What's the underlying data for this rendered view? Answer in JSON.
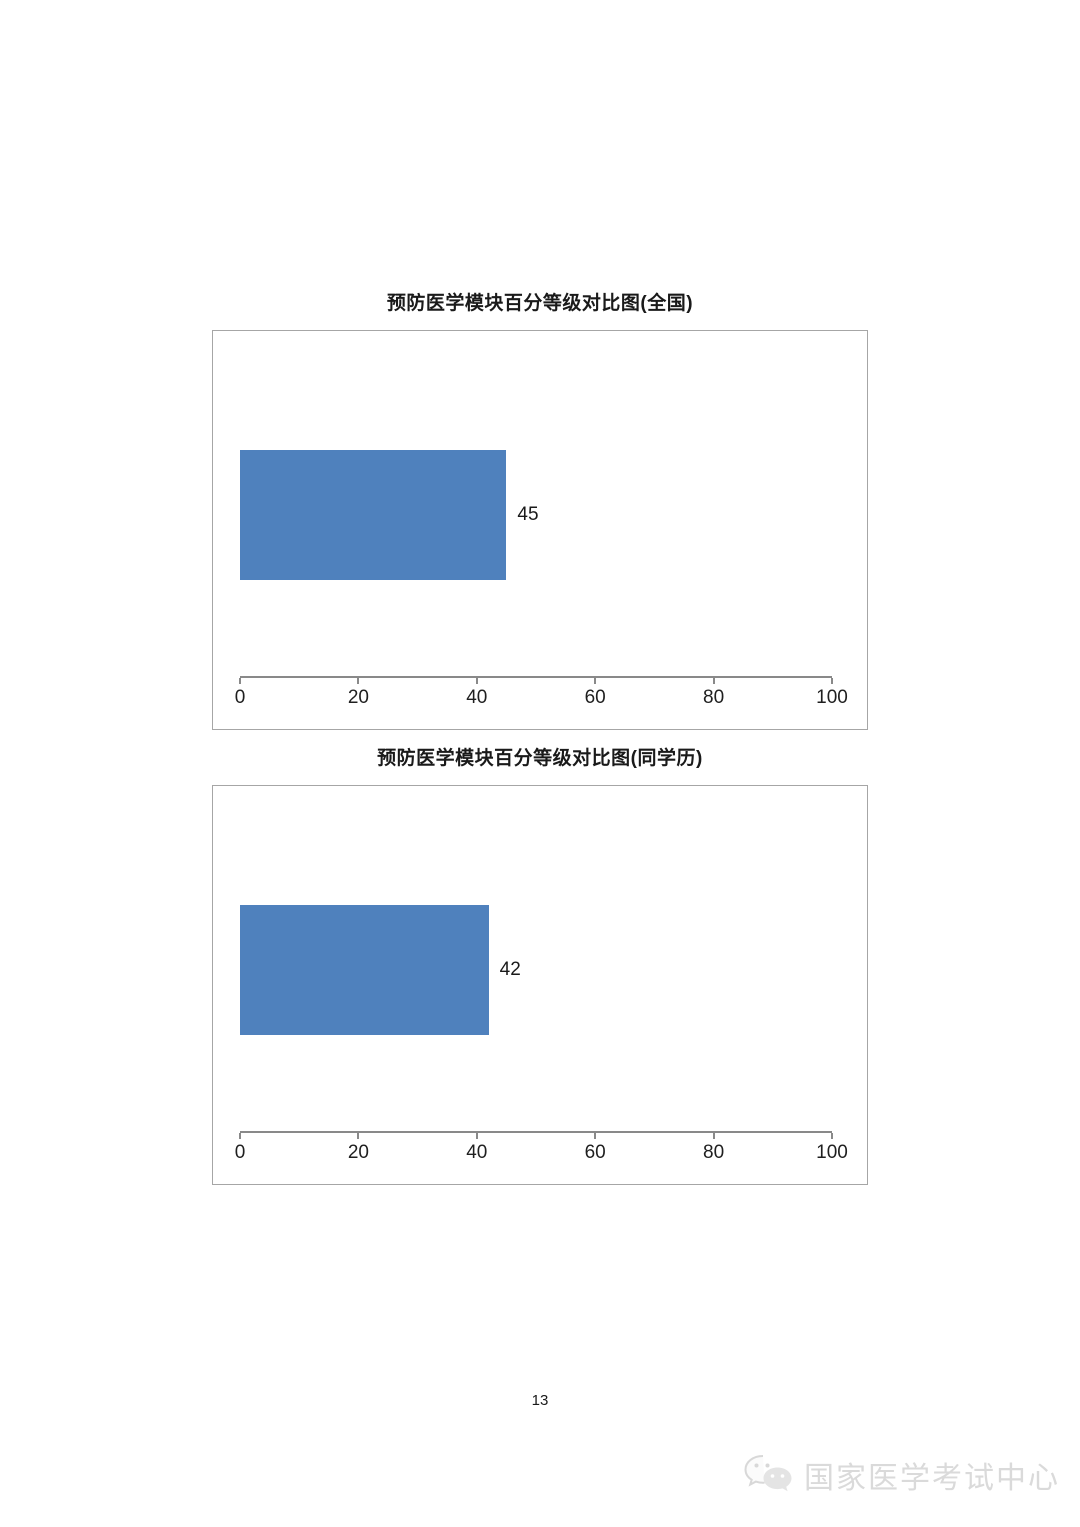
{
  "page": {
    "number": "13"
  },
  "footer": {
    "watermark_text": "国家医学考试中心"
  },
  "chart_data": [
    {
      "type": "bar",
      "orientation": "horizontal",
      "title": "预防医学模块百分等级对比图(全国)",
      "categories": [
        ""
      ],
      "values": [
        45
      ],
      "data_labels": [
        "45"
      ],
      "xlim": [
        0,
        100
      ],
      "xticks": [
        0,
        20,
        40,
        60,
        80,
        100
      ],
      "bar_color": "#4f81bd",
      "grid": false,
      "legend": "none"
    },
    {
      "type": "bar",
      "orientation": "horizontal",
      "title": "预防医学模块百分等级对比图(同学历)",
      "categories": [
        ""
      ],
      "values": [
        42
      ],
      "data_labels": [
        "42"
      ],
      "xlim": [
        0,
        100
      ],
      "xticks": [
        0,
        20,
        40,
        60,
        80,
        100
      ],
      "bar_color": "#4f81bd",
      "grid": false,
      "legend": "none"
    }
  ]
}
